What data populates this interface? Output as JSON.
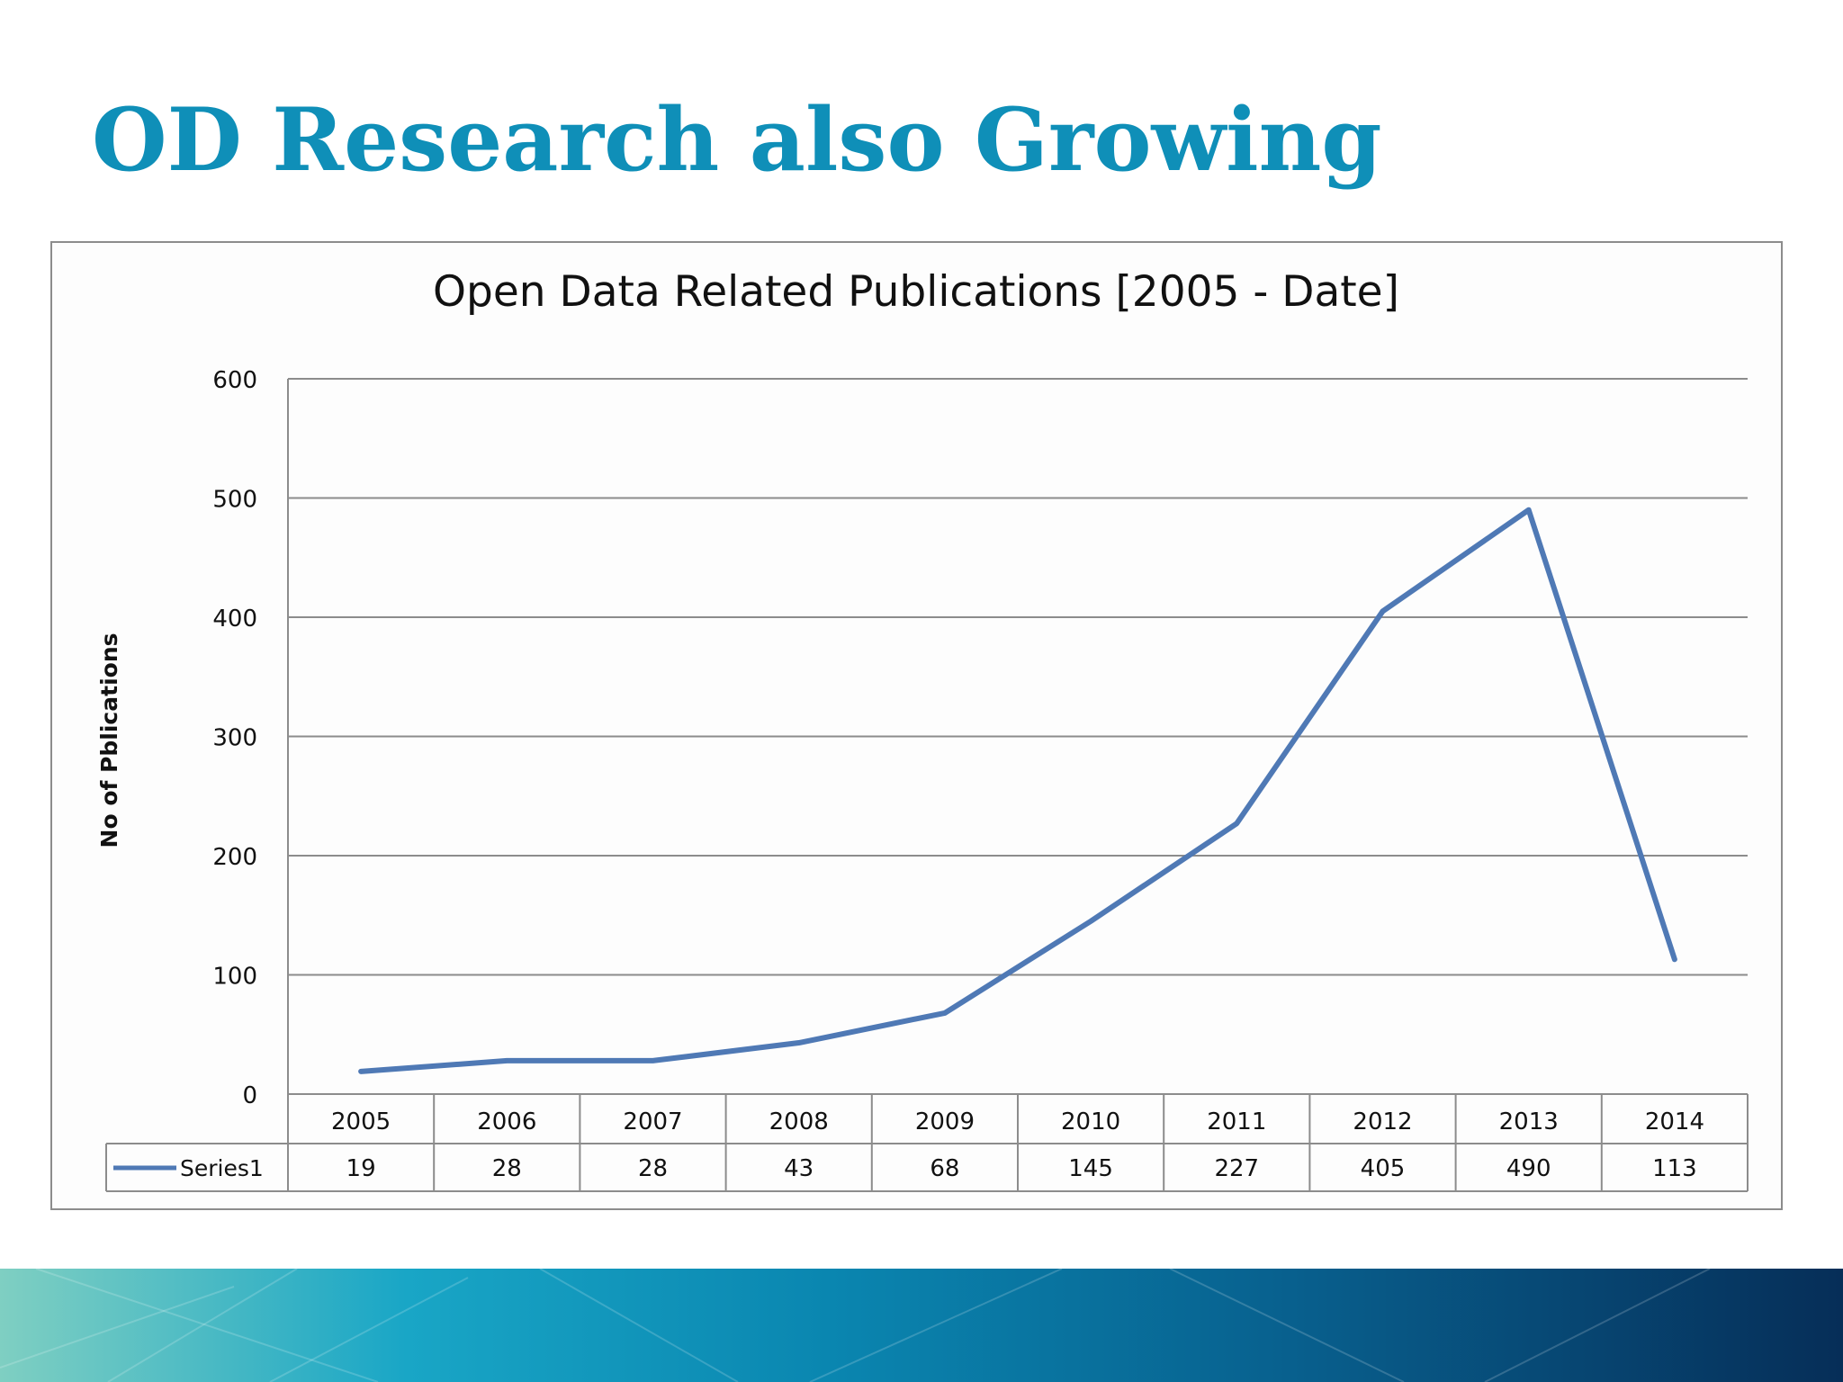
{
  "slide": {
    "title": "OD Research also Growing"
  },
  "colors": {
    "title": "#0f8fb8",
    "series_line": "#4f79b5",
    "grid": "#8c8c8c"
  },
  "chart_data": {
    "type": "line",
    "title": "Open Data Related Publications [2005 -  Date]",
    "xlabel": "",
    "ylabel": "No of Pblications",
    "ylim": [
      0,
      600
    ],
    "yticks": [
      0,
      100,
      200,
      300,
      400,
      500,
      600
    ],
    "grid": true,
    "categories": [
      "2005",
      "2006",
      "2007",
      "2008",
      "2009",
      "2010",
      "2011",
      "2012",
      "2013",
      "2014"
    ],
    "series": [
      {
        "name": "Series1",
        "values": [
          19,
          28,
          28,
          43,
          68,
          145,
          227,
          405,
          490,
          113
        ]
      }
    ],
    "data_table": true
  }
}
